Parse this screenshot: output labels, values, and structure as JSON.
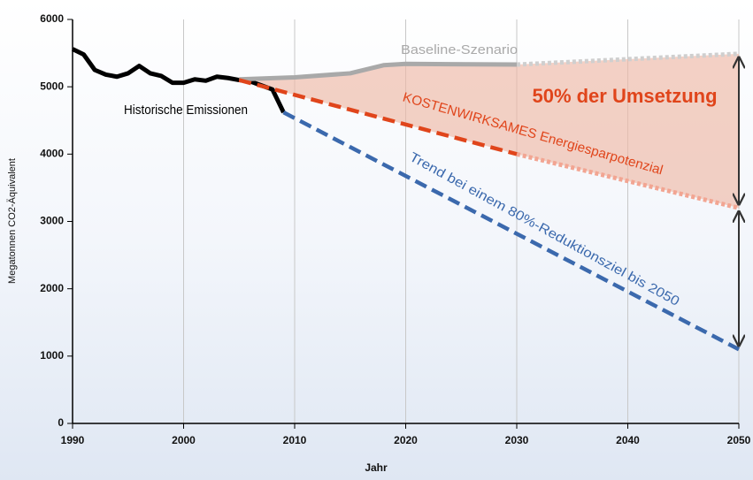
{
  "chart_data": {
    "type": "line",
    "xlabel": "Jahr",
    "ylabel": "Megatonnen CO2-Äquivalent",
    "xlim": [
      1990,
      2050
    ],
    "xticks": [
      1990,
      2000,
      2010,
      2020,
      2030,
      2040,
      2050
    ],
    "ylim": [
      0,
      6000
    ],
    "yticks": [
      0,
      1000,
      2000,
      3000,
      4000,
      5000,
      6000
    ],
    "grid": true,
    "series": [
      {
        "name": "Historische Emissionen",
        "color": "#000000",
        "style": "solid",
        "x": [
          1990,
          1991,
          1992,
          1993,
          1994,
          1995,
          1996,
          1997,
          1998,
          1999,
          2000,
          2001,
          2002,
          2003,
          2004,
          2005,
          2006,
          2007,
          2008,
          2009
        ],
        "values": [
          5560,
          5480,
          5250,
          5180,
          5150,
          5200,
          5310,
          5200,
          5160,
          5060,
          5060,
          5110,
          5090,
          5150,
          5130,
          5100,
          5080,
          5020,
          4960,
          4620
        ]
      },
      {
        "name": "Baseline-Szenario",
        "color": "#a9a9a9",
        "style": "solid",
        "x": [
          2005,
          2010,
          2015,
          2018,
          2020,
          2030
        ],
        "values": [
          5110,
          5140,
          5200,
          5320,
          5340,
          5330
        ],
        "extension": {
          "color": "#cfcfcf",
          "x": [
            2030,
            2050
          ],
          "values": [
            5330,
            5490
          ]
        }
      },
      {
        "name": "KOSTENWIRKSAMES Energiesparpotenzial",
        "color": "#e0451b",
        "style": "dashed",
        "x": [
          2005,
          2030
        ],
        "values": [
          5100,
          4000
        ],
        "extension": {
          "color": "#f2a592",
          "x": [
            2030,
            2050
          ],
          "values": [
            4000,
            3200
          ]
        }
      },
      {
        "name": "Trend bei einem 80%-Reduktionsziel bis 2050",
        "color": "#3b69ad",
        "style": "dashed",
        "x": [
          2009,
          2050
        ],
        "values": [
          4620,
          1100
        ]
      }
    ],
    "annotation": {
      "text": "50% der Umsetzung",
      "color": "#e0451b"
    }
  }
}
